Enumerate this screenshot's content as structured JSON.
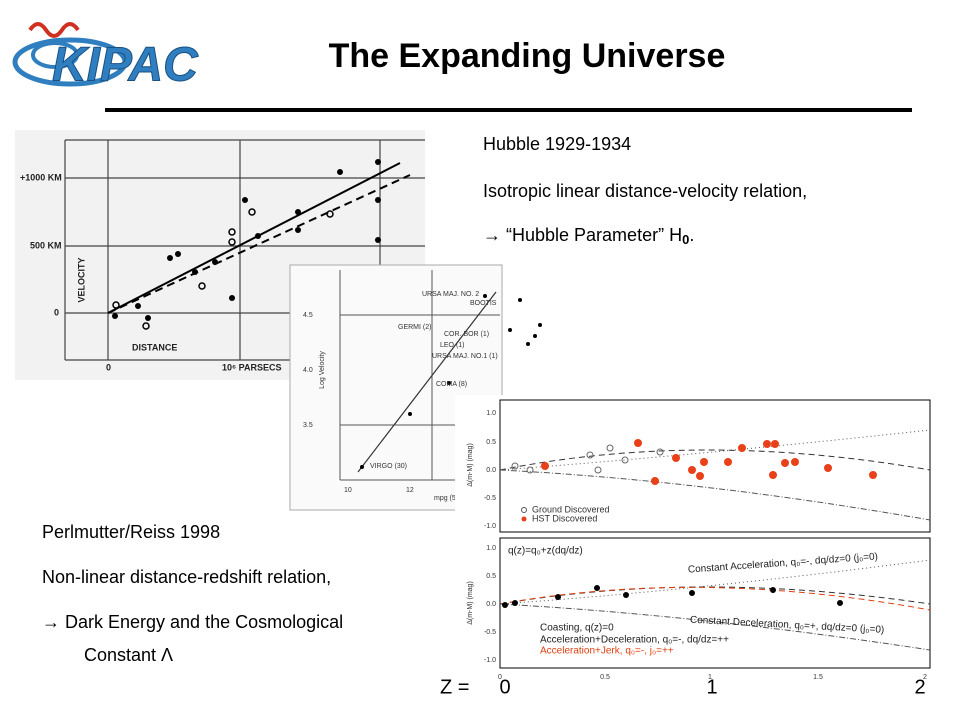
{
  "header": {
    "logo": "KIPAC",
    "title": "The Expanding Universe"
  },
  "hubble_text": {
    "heading": "Hubble 1929-1934",
    "line1": "Isotropic linear distance-velocity relation,",
    "line2_prefix": "→  “Hubble Parameter” H",
    "line2_sub": "0",
    "line2_suffix": "."
  },
  "perlmutter_text": {
    "heading": "Perlmutter/Reiss 1998",
    "line1": "Non-linear distance-redshift relation,",
    "line2": "→  Dark Energy and the Cosmological",
    "line3": "Constant Λ"
  },
  "redshift_axis": {
    "prefix": "Z =",
    "ticks": [
      "0",
      "1",
      "2"
    ]
  },
  "figure_hubble_1929": {
    "y_ticks": [
      "+1000 KM",
      "500 KM",
      "0"
    ],
    "y_label": "VELOCITY",
    "x_label": "DISTANCE",
    "x_ticks": [
      "0",
      "10⁶ PARSECS"
    ]
  },
  "figure_hubble_humason": {
    "y_ticks": [
      "4.5",
      "4.0",
      "3.5"
    ],
    "y_label": "Log Velocity",
    "x_ticks": [
      "10",
      "12"
    ],
    "x_label": "mpg (5",
    "clusters": [
      "URSA MAJ. NO. 2",
      "BOOTIS",
      "GERMI (2)",
      "COR. BOR (1)",
      "LEO (1)",
      "URSA MAJ. NO.1 (1)",
      "COMA (8)",
      "VIRGO (30)"
    ]
  },
  "figure_supernovae": {
    "y_label": "Δ(m-M) (mag)",
    "y_ticks": [
      "1.0",
      "0.5",
      "0.0",
      "-0.5",
      "-1.0"
    ],
    "legend": [
      "Ground Discovered",
      "HST Discovered"
    ],
    "model": "q(z)=q₀+z(dq/dz)",
    "curves": [
      "Constant Acceleration, q₀=-, dq/dz=0 (j₀=0)",
      "Constant Deceleration, q₀=+, dq/dz=0 (j₀=0)",
      "Coasting, q(z)=0",
      "Acceleration+Deceleration, q₀=-, dq/dz=++",
      "Acceleration+Jerk, q₀=-, j₀=++"
    ],
    "x_ticks": [
      "0",
      "0.5",
      "1",
      "1.5",
      "2"
    ]
  }
}
